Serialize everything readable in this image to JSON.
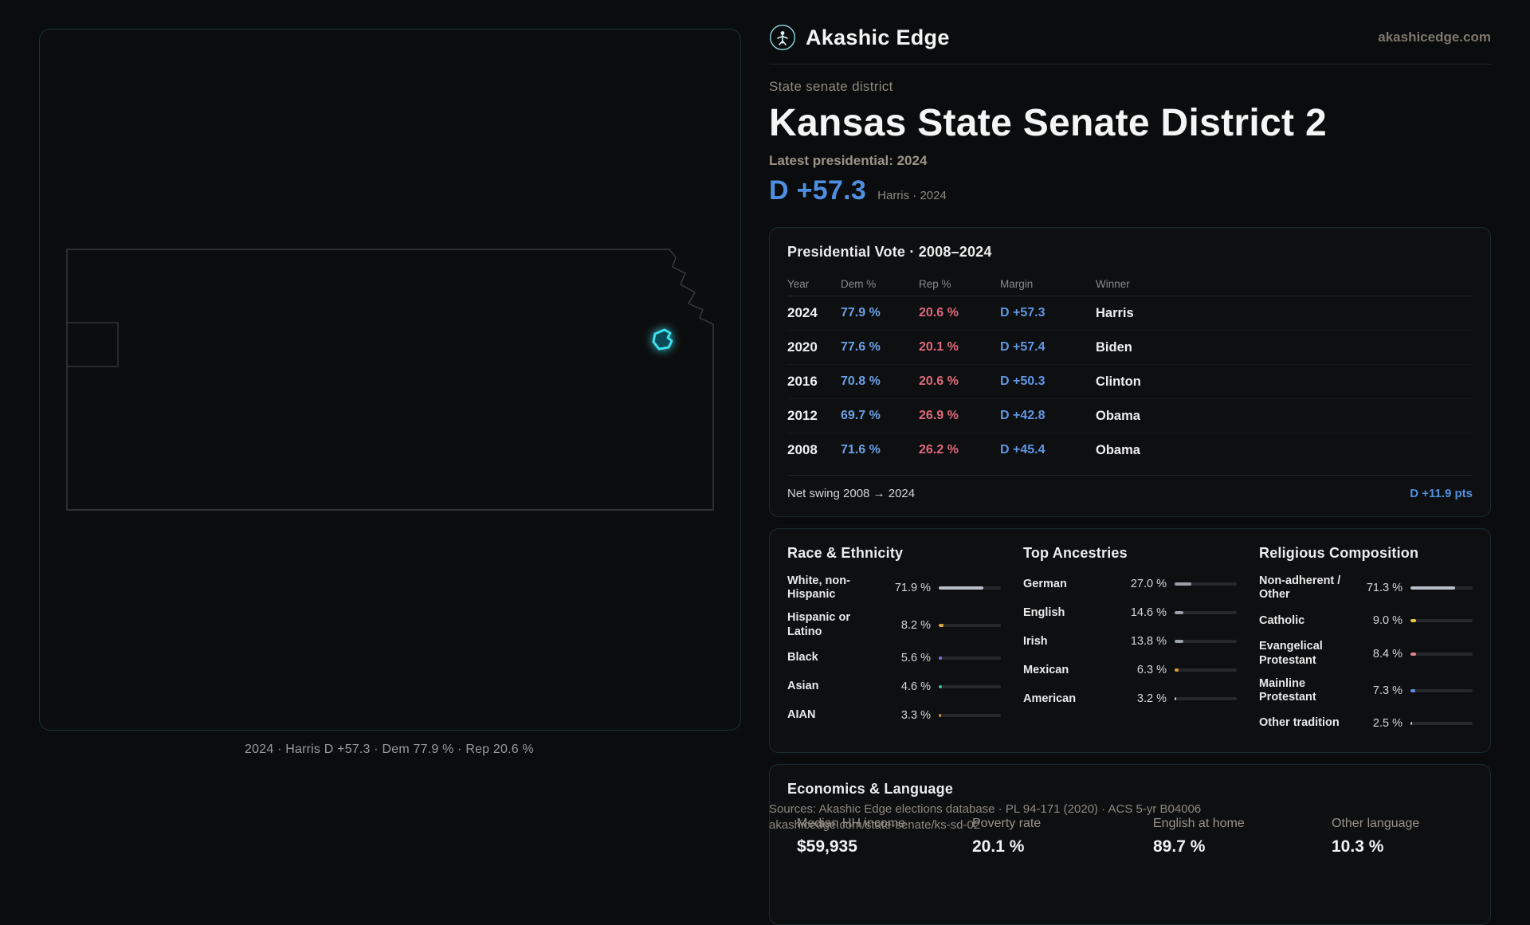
{
  "brand": {
    "name": "Akashic Edge",
    "domain": "akashicedge.com"
  },
  "map": {
    "caption": "2024 · Harris D +57.3 · Dem 77.9 % · Rep 20.6 %"
  },
  "header": {
    "kicker": "State senate district",
    "title": "Kansas State Senate District 2",
    "latest": "Latest presidential: 2024",
    "margin": "D +57.3",
    "margin_note": "Harris · 2024"
  },
  "pres": {
    "title": "Presidential Vote · 2008–2024",
    "col_year": "Year",
    "col_dem": "Dem %",
    "col_rep": "Rep %",
    "col_margin": "Margin",
    "col_winner": "Winner",
    "rows": [
      {
        "year": "2024",
        "dem": "77.9 %",
        "rep": "20.6 %",
        "margin": "D +57.3",
        "winner": "Harris"
      },
      {
        "year": "2020",
        "dem": "77.6 %",
        "rep": "20.1 %",
        "margin": "D +57.4",
        "winner": "Biden"
      },
      {
        "year": "2016",
        "dem": "70.8 %",
        "rep": "20.6 %",
        "margin": "D +50.3",
        "winner": "Clinton"
      },
      {
        "year": "2012",
        "dem": "69.7 %",
        "rep": "26.9 %",
        "margin": "D +42.8",
        "winner": "Obama"
      },
      {
        "year": "2008",
        "dem": "71.6 %",
        "rep": "26.2 %",
        "margin": "D +45.4",
        "winner": "Obama"
      }
    ],
    "swing_label": "Net swing 2008 → 2024",
    "swing_value": "D +11.9 pts"
  },
  "race": {
    "title": "Race & Ethnicity",
    "items": [
      {
        "label": "White, non-Hispanic",
        "value": "71.9 %",
        "pct": 71.9,
        "color": "#b9c0c9"
      },
      {
        "label": "Hispanic or Latino",
        "value": "8.2 %",
        "pct": 8.2,
        "color": "#e2a23b"
      },
      {
        "label": "Black",
        "value": "5.6 %",
        "pct": 5.6,
        "color": "#7d74e8"
      },
      {
        "label": "Asian",
        "value": "4.6 %",
        "pct": 4.6,
        "color": "#41c98e"
      },
      {
        "label": "AIAN",
        "value": "3.3 %",
        "pct": 3.3,
        "color": "#d9953f"
      }
    ]
  },
  "ancestry": {
    "title": "Top Ancestries",
    "items": [
      {
        "label": "German",
        "value": "27.0 %",
        "pct": 27.0,
        "color": "#9aa1aa"
      },
      {
        "label": "English",
        "value": "14.6 %",
        "pct": 14.6,
        "color": "#9aa1aa"
      },
      {
        "label": "Irish",
        "value": "13.8 %",
        "pct": 13.8,
        "color": "#9aa1aa"
      },
      {
        "label": "Mexican",
        "value": "6.3 %",
        "pct": 6.3,
        "color": "#e2a23b"
      },
      {
        "label": "American",
        "value": "3.2 %",
        "pct": 3.2,
        "color": "#c9ced4"
      }
    ]
  },
  "religion": {
    "title": "Religious Composition",
    "items": [
      {
        "label": "Non-adherent / Other",
        "value": "71.3 %",
        "pct": 71.3,
        "color": "#b9c0c9"
      },
      {
        "label": "Catholic",
        "value": "9.0 %",
        "pct": 9.0,
        "color": "#e8c93f"
      },
      {
        "label": "Evangelical Protestant",
        "value": "8.4 %",
        "pct": 8.4,
        "color": "#e87f8e"
      },
      {
        "label": "Mainline Protestant",
        "value": "7.3 %",
        "pct": 7.3,
        "color": "#5f8fe8"
      },
      {
        "label": "Other tradition",
        "value": "2.5 %",
        "pct": 2.5,
        "color": "#c9ced4"
      }
    ]
  },
  "econ": {
    "title": "Economics & Language",
    "stats": [
      {
        "label": "Median HH income",
        "value": "$59,935"
      },
      {
        "label": "Poverty rate",
        "value": "20.1 %"
      },
      {
        "label": "English at home",
        "value": "89.7 %"
      },
      {
        "label": "Other language",
        "value": "10.3 %"
      }
    ]
  },
  "footer": {
    "line1": "Sources: Akashic Edge elections database · PL 94-171 (2020) · ACS 5-yr B04006",
    "line2": "akashicedge.com/state-senate/ks-sd-02"
  }
}
